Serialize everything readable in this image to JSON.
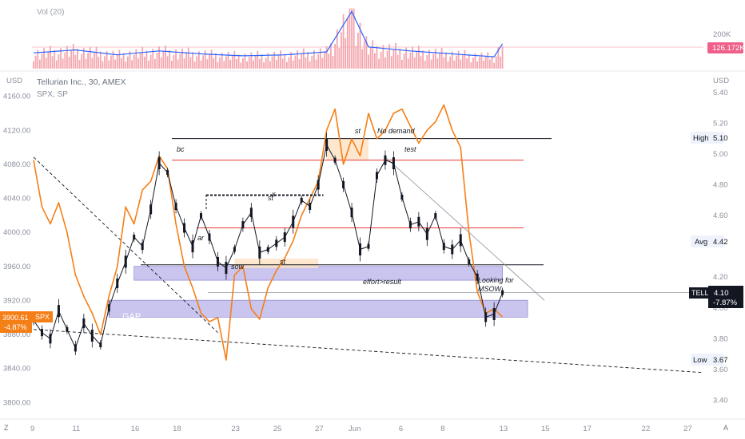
{
  "volume_panel": {
    "label": "Vol (20)",
    "axis_label": "200K",
    "current_value": "126.172K"
  },
  "price_panel": {
    "left_currency": "USD",
    "right_currency": "USD",
    "title": "Tellurian Inc., 30, AMEX",
    "subtitle": "SPX, SP",
    "badge_high_label": "High",
    "badge_high_value": "5.10",
    "badge_avg_label": "Avg",
    "badge_avg_value": "4.42",
    "badge_low_label": "Low",
    "badge_low_value": "3.67",
    "tell_symbol": "TELL",
    "tell_price": "4.10",
    "tell_change": "-7.87%",
    "spx_price": "3900.61",
    "spx_symbol": "SPX",
    "spx_change": "-4.87%"
  },
  "annotations": {
    "bc": "bc",
    "ar": "ar",
    "sow": "sow",
    "st_left": "st",
    "st_mid": "st",
    "x_mark": "x",
    "no_demand": "No demand",
    "test": "test",
    "st_top": "st",
    "effort": "effort>result",
    "looking_1": "Looking for",
    "looking_2": "MSOW",
    "gap": "GAP"
  },
  "footer": {
    "z_button": "Z",
    "a_button": "A"
  },
  "colors": {
    "tell_line": "#131722",
    "spx_line": "#f57f17",
    "volume_bar": "#f4a6ae",
    "volume_ma": "#2962ff",
    "purple_zone": "#b7b2e8",
    "orange_zone": "#fde3c6",
    "red_level": "#e53935",
    "badge_red": "#ef5f8a"
  },
  "chart_data": {
    "type": "line",
    "left_axis": {
      "label": "USD",
      "ticks": [
        3800,
        3840,
        3880,
        3920,
        3960,
        4000,
        4040,
        4080,
        4120,
        4160
      ],
      "ylim": [
        3790,
        4170
      ]
    },
    "right_axis": {
      "label": "USD",
      "ticks": [
        3.4,
        3.6,
        3.8,
        4.0,
        4.2,
        4.42,
        4.6,
        4.8,
        5.0,
        5.2,
        5.4
      ],
      "ylim": [
        3.33,
        5.43
      ]
    },
    "x_tick_labels": [
      "9",
      "11",
      "16",
      "18",
      "23",
      "25",
      "27",
      "Jun",
      "6",
      "8",
      "13",
      "15",
      "17",
      "22",
      "27"
    ],
    "x_tick_index": [
      0,
      5,
      12,
      17,
      24,
      29,
      34,
      38,
      44,
      49,
      56,
      61,
      66,
      73,
      78
    ],
    "xlim": [
      0,
      80
    ],
    "series": [
      {
        "name": "Tellurian Inc., 30, AMEX",
        "axis": "right",
        "x": [
          0,
          1,
          2,
          3,
          4,
          5,
          6,
          7,
          8,
          9,
          10,
          11,
          12,
          13,
          14,
          15,
          16,
          17,
          18,
          19,
          20,
          21,
          22,
          23,
          24,
          25,
          26,
          27,
          28,
          29,
          30,
          31,
          32,
          33,
          34,
          35,
          36,
          37,
          38,
          39,
          40,
          41,
          42,
          43,
          44,
          45,
          46,
          47,
          48,
          49,
          50,
          51,
          52,
          53,
          54,
          55,
          56
        ],
        "values": [
          3.92,
          3.84,
          3.8,
          3.98,
          3.86,
          3.74,
          3.9,
          3.82,
          3.76,
          4.0,
          4.16,
          4.3,
          4.46,
          4.4,
          4.64,
          4.94,
          4.88,
          4.66,
          4.52,
          4.4,
          4.6,
          4.46,
          4.3,
          4.26,
          4.38,
          4.54,
          4.62,
          4.36,
          4.38,
          4.42,
          4.46,
          4.56,
          4.7,
          4.66,
          4.8,
          5.06,
          4.96,
          4.8,
          4.62,
          4.38,
          4.4,
          4.86,
          4.96,
          4.94,
          4.72,
          4.54,
          4.56,
          4.48,
          4.6,
          4.4,
          4.38,
          4.44,
          4.3,
          4.2,
          3.94,
          3.96,
          4.1
        ]
      },
      {
        "name": "SPX, SP",
        "axis": "left",
        "x": [
          0,
          1,
          2,
          3,
          4,
          5,
          6,
          7,
          8,
          9,
          10,
          11,
          12,
          13,
          14,
          15,
          16,
          17,
          18,
          19,
          20,
          21,
          22,
          23,
          24,
          25,
          26,
          27,
          28,
          29,
          30,
          31,
          32,
          33,
          34,
          35,
          36,
          37,
          38,
          39,
          40,
          41,
          42,
          43,
          44,
          45,
          46,
          47,
          48,
          49,
          50,
          51,
          52,
          53,
          54,
          55,
          56
        ],
        "values": [
          4085,
          4030,
          4010,
          4035,
          4000,
          3950,
          3925,
          3905,
          3880,
          3925,
          3960,
          4030,
          4010,
          4050,
          4060,
          4090,
          4075,
          4010,
          3960,
          3935,
          3905,
          3895,
          3900,
          3850,
          3950,
          3960,
          3910,
          3898,
          3935,
          3955,
          3970,
          3990,
          4020,
          4040,
          4060,
          4120,
          4145,
          4080,
          4110,
          4090,
          4140,
          4110,
          4120,
          4140,
          4145,
          4125,
          4105,
          4120,
          4130,
          4150,
          4120,
          4100,
          4000,
          3930,
          3905,
          3910,
          3900.61
        ]
      },
      {
        "name": "Vol (20)",
        "panel": "volume",
        "x": [
          0,
          5,
          10,
          15,
          20,
          25,
          30,
          35,
          38,
          40,
          45,
          50,
          55,
          56
        ],
        "values": [
          80,
          95,
          70,
          90,
          75,
          65,
          70,
          85,
          290,
          110,
          90,
          75,
          60,
          126.172
        ]
      }
    ],
    "levels": [
      {
        "axis": "right",
        "y": 5.1,
        "color": "black"
      },
      {
        "axis": "right",
        "y": 4.96,
        "color": "red"
      },
      {
        "axis": "right",
        "y": 4.52,
        "color": "red"
      },
      {
        "axis": "right",
        "y": 4.28,
        "color": "black"
      },
      {
        "axis": "right",
        "y": 4.1,
        "color": "gray"
      }
    ],
    "zones": [
      {
        "axis": "right",
        "x": [
          12,
          56
        ],
        "y": [
          4.18,
          4.27
        ],
        "color": "purple"
      },
      {
        "axis": "right",
        "x": [
          9,
          59
        ],
        "y": [
          3.94,
          4.05
        ],
        "color": "purple"
      },
      {
        "axis": "right",
        "x": [
          35,
          40
        ],
        "y": [
          4.96,
          5.1
        ],
        "color": "orange"
      },
      {
        "axis": "right",
        "x": [
          24,
          34
        ],
        "y": [
          4.26,
          4.32
        ],
        "color": "orange"
      }
    ],
    "trendlines": [
      {
        "axis": "right",
        "from": [
          0,
          4.98
        ],
        "to": [
          22,
          3.84
        ],
        "style": "dashed"
      },
      {
        "axis": "right",
        "from": [
          0,
          3.86
        ],
        "to": [
          80,
          3.58
        ],
        "style": "dashed"
      },
      {
        "axis": "right",
        "from": [
          42,
          4.98
        ],
        "to": [
          61,
          4.05
        ],
        "style": "solid"
      }
    ],
    "legend": "top-left",
    "grid": false
  }
}
